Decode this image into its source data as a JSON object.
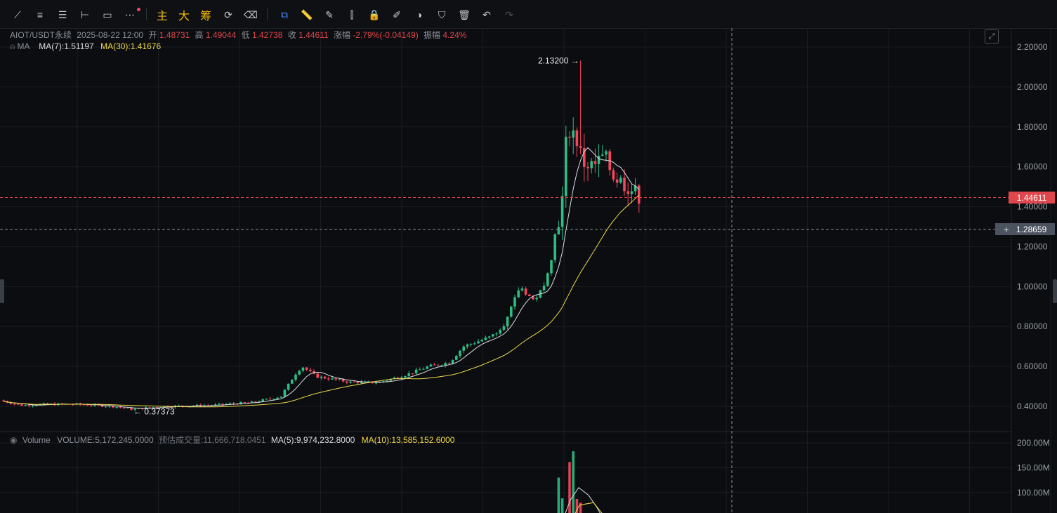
{
  "toolbar": {
    "tools": [
      {
        "icon": "trend-line-icon",
        "glyph": "⟋"
      },
      {
        "icon": "parallel-lines-icon",
        "glyph": "≡"
      },
      {
        "icon": "horizontal-lines-icon",
        "glyph": "☰"
      },
      {
        "icon": "horizontal-ray-icon",
        "glyph": "⊢"
      },
      {
        "icon": "rectangle-icon",
        "glyph": "▭"
      },
      {
        "icon": "more-icon",
        "glyph": "⋯"
      }
    ],
    "indicator_labels": [
      "主",
      "大",
      "筹"
    ],
    "right_tools": [
      {
        "icon": "replay-icon",
        "glyph": "⟳"
      },
      {
        "icon": "eraser-icon",
        "glyph": "⌫"
      },
      {
        "icon": "layers-icon",
        "glyph": "⧉"
      },
      {
        "icon": "ruler-icon",
        "glyph": "📏"
      },
      {
        "icon": "pen-icon",
        "glyph": "✎"
      },
      {
        "icon": "candlestick-type-icon",
        "glyph": "⫿"
      },
      {
        "icon": "lock-icon",
        "glyph": "🔒"
      },
      {
        "icon": "template-icon",
        "glyph": "✐"
      },
      {
        "icon": "magnet-icon",
        "glyph": "◑"
      },
      {
        "icon": "filter-icon",
        "glyph": "⛉"
      },
      {
        "icon": "trash-icon",
        "glyph": "🗑"
      },
      {
        "icon": "undo-icon",
        "glyph": "↶"
      },
      {
        "icon": "redo-icon",
        "glyph": "↷"
      }
    ]
  },
  "info": {
    "symbol": "AIOT/USDT永续",
    "datetime": "2025-08-22 12:00",
    "open_label": "开",
    "open": "1.48731",
    "high_label": "高",
    "high": "1.49044",
    "low_label": "低",
    "low": "1.42738",
    "close_label": "收",
    "close": "1.44611",
    "change_label": "涨幅",
    "change": "-2.79%(-0.04149)",
    "amp_label": "振幅",
    "amp": "4.24%"
  },
  "ma": {
    "label": "MA",
    "ma7": "MA(7):1.51197",
    "ma30": "MA(30):1.41676"
  },
  "volume": {
    "label": "Volume",
    "value": "VOLUME:5,172,245.0000",
    "est": "预估成交量:11,666,718.0451",
    "ma5": "MA(5):9,974,232.8000",
    "ma10": "MA(10):13,585,152.6000"
  },
  "price_tags": {
    "last": "1.44611",
    "crosshair": "1.28659"
  },
  "chart_data": {
    "type": "candlestick",
    "price_axis": {
      "ticks": [
        "2.20000",
        "2.00000",
        "1.80000",
        "1.60000",
        "1.40000",
        "1.20000",
        "1.00000",
        "0.80000",
        "0.60000",
        "0.40000"
      ],
      "range": [
        0.33,
        2.25
      ]
    },
    "volume_axis": {
      "ticks": [
        "200.00M",
        "150.00M",
        "100.00M"
      ],
      "range": [
        0,
        215
      ]
    },
    "annotations": {
      "high_label": "2.13200 →",
      "low_label": "← 0.37373"
    },
    "colors": {
      "up": "#2ebd85",
      "down": "#f6465d",
      "ma7": "#d9dde3",
      "ma30": "#f0d84a"
    }
  }
}
